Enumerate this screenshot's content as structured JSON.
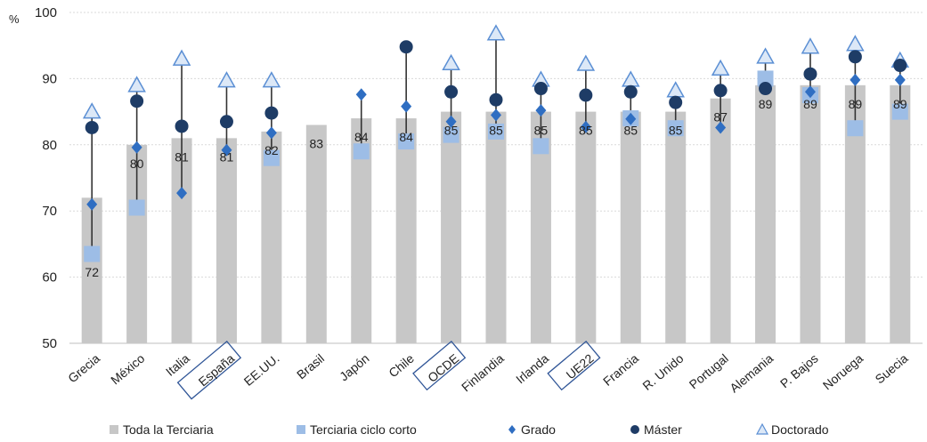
{
  "chart_data": {
    "type": "bar",
    "ylabel": "%",
    "ylim": [
      50,
      100
    ],
    "yticks": [
      50,
      60,
      70,
      80,
      90,
      100
    ],
    "grid": true,
    "legend_position": "bottom",
    "highlighted_categories": [
      "España",
      "OCDE",
      "UE22"
    ],
    "categories": [
      "Grecia",
      "México",
      "Italia",
      "España",
      "EE.UU.",
      "Brasil",
      "Japón",
      "Chile",
      "OCDE",
      "Finlandia",
      "Irlanda",
      "UE22",
      "Francia",
      "R. Unido",
      "Portugal",
      "Alemania",
      "P. Bajos",
      "Noruega",
      "Suecia"
    ],
    "bar_labels": [
      "72",
      "80",
      "81",
      "81",
      "82",
      "83",
      "84",
      "84",
      "85",
      "85",
      "85",
      "85",
      "85",
      "85",
      "87",
      "89",
      "89",
      "89",
      "89"
    ],
    "series": [
      {
        "name": "Toda la Terciaria",
        "marker": "bar",
        "color": "#c7c7c7",
        "values": [
          72,
          80,
          81,
          81,
          82,
          83,
          84,
          84,
          85,
          85,
          85,
          85,
          85,
          85,
          87,
          89,
          89,
          89,
          89
        ]
      },
      {
        "name": "Terciaria ciclo corto",
        "marker": "square",
        "color": "#9dbde6",
        "values": [
          63.5,
          70.5,
          null,
          null,
          78,
          null,
          79,
          80.5,
          81.5,
          82,
          79.8,
          null,
          84,
          82.5,
          null,
          90,
          87.5,
          82.5,
          85
        ]
      },
      {
        "name": "Grado",
        "marker": "diamond",
        "color": "#2f6ec2",
        "values": [
          71,
          79.6,
          72.7,
          79.2,
          81.8,
          null,
          87.6,
          85.8,
          83.5,
          84.5,
          85.2,
          82.7,
          83.9,
          null,
          82.6,
          null,
          88,
          89.8,
          89.8
        ]
      },
      {
        "name": "Máster",
        "marker": "circle",
        "color": "#1e3c66",
        "values": [
          82.6,
          86.6,
          82.8,
          83.5,
          84.8,
          null,
          null,
          94.8,
          88,
          86.8,
          88.5,
          87.5,
          88,
          86.4,
          88.2,
          88.5,
          90.7,
          93.3,
          92
        ]
      },
      {
        "name": "Doctorado",
        "marker": "triangle",
        "color": "#9dbde6",
        "values": [
          85,
          89,
          93,
          89.7,
          89.7,
          null,
          null,
          null,
          92.3,
          96.8,
          89.8,
          92.2,
          89.8,
          88.2,
          91.5,
          93.3,
          94.8,
          95.2,
          92.7
        ]
      }
    ]
  }
}
